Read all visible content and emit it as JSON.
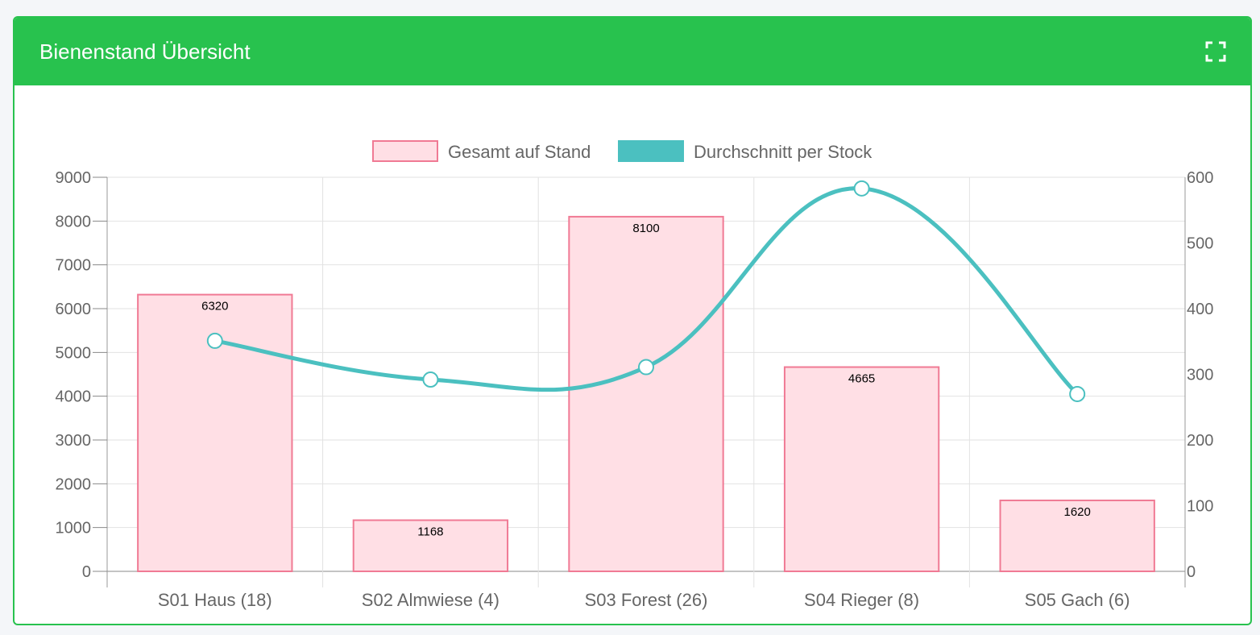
{
  "card": {
    "title": "Bienenstand Übersicht",
    "expand_icon": "expand-icon",
    "header_color": "#28c24e"
  },
  "chart_data": {
    "type": "bar",
    "categories": [
      "S01 Haus (18)",
      "S02 Almwiese (4)",
      "S03 Forest (26)",
      "S04 Rieger (8)",
      "S05 Gach (6)"
    ],
    "series": [
      {
        "name": "Gesamt auf Stand",
        "type": "bar",
        "axis": "left",
        "values": [
          6320,
          1168,
          8100,
          4665,
          1620
        ],
        "data_labels": [
          "6320",
          "1168",
          "8100",
          "4665",
          "1620"
        ],
        "fill": "#ffdfe5",
        "stroke": "#f07a94"
      },
      {
        "name": "Durchschnitt per Stock",
        "type": "line",
        "axis": "right",
        "values": [
          351,
          292,
          311,
          583,
          270
        ],
        "stroke": "#4bc0c0"
      }
    ],
    "y_left": {
      "min": 0,
      "max": 9000,
      "ticks": [
        "0",
        "1000",
        "2000",
        "3000",
        "4000",
        "5000",
        "6000",
        "7000",
        "8000",
        "9000"
      ]
    },
    "y_right": {
      "min": 0,
      "max": 600,
      "ticks": [
        "0",
        "100",
        "200",
        "300",
        "400",
        "500",
        "600"
      ]
    },
    "legend_position": "top",
    "grid": true,
    "xlabel": "",
    "ylabel": ""
  }
}
